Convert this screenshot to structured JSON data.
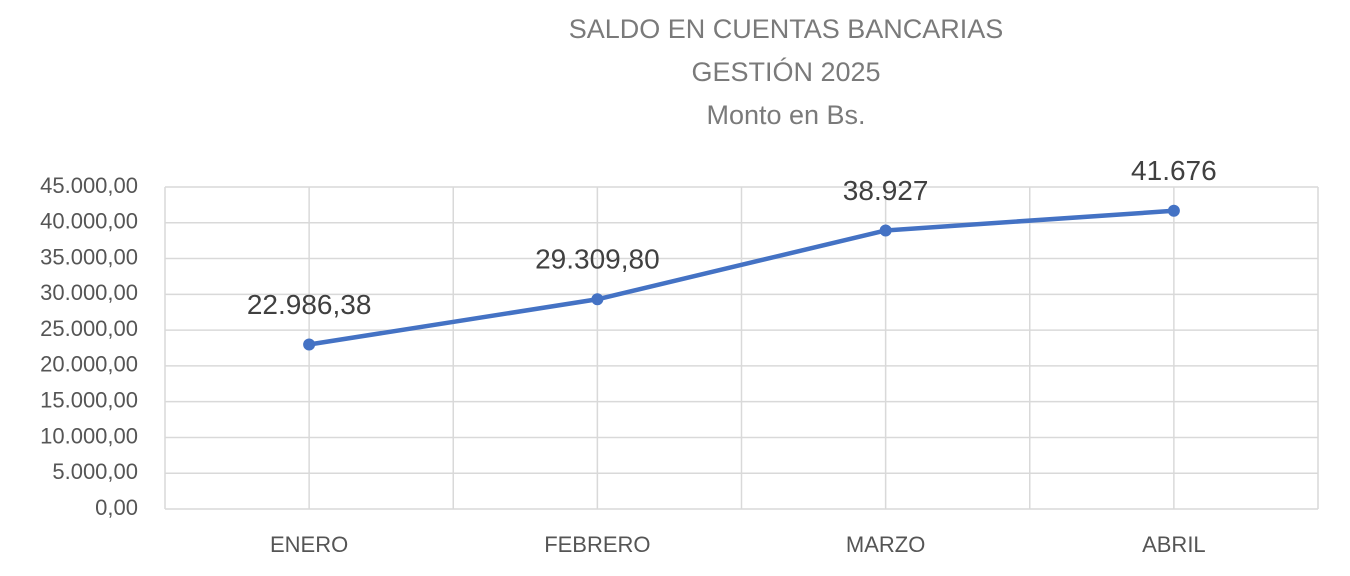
{
  "chart_data": {
    "type": "line",
    "title": [
      "SALDO EN CUENTAS BANCARIAS",
      "GESTIÓN 2025",
      "Monto en Bs."
    ],
    "categories": [
      "ENERO",
      "FEBRERO",
      "MARZO",
      "ABRIL"
    ],
    "values": [
      22986.38,
      29309.8,
      38927,
      41676
    ],
    "value_labels": [
      "22.986,38",
      "29.309,80",
      "38.927",
      "41.676"
    ],
    "color": "#4472c4",
    "ylim": [
      0,
      45000
    ],
    "yticks": [
      {
        "value": 0,
        "label": "0,00"
      },
      {
        "value": 5000,
        "label": "5.000,00"
      },
      {
        "value": 10000,
        "label": "10.000,00"
      },
      {
        "value": 15000,
        "label": "15.000,00"
      },
      {
        "value": 20000,
        "label": "20.000,00"
      },
      {
        "value": 25000,
        "label": "25.000,00"
      },
      {
        "value": 30000,
        "label": "30.000,00"
      },
      {
        "value": 35000,
        "label": "35.000,00"
      },
      {
        "value": 40000,
        "label": "40.000,00"
      },
      {
        "value": 45000,
        "label": "45.000,00"
      }
    ],
    "grid": true
  }
}
